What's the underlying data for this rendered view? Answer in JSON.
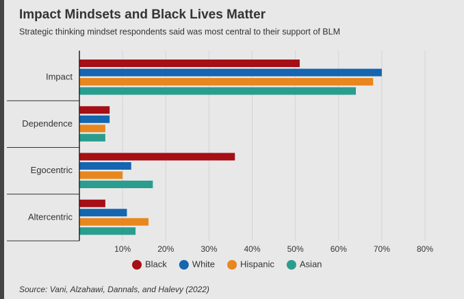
{
  "chart_data": {
    "type": "hbar",
    "title": "Impact Mindsets and Black Lives Matter",
    "subtitle": "Strategic thinking mindset respondents said was most central to their support of BLM",
    "source": "Source: Vani, Alzahawi, Dannals, and Halevy (2022)",
    "categories": [
      "Impact",
      "Dependence",
      "Egocentric",
      "Altercentric"
    ],
    "series": [
      {
        "name": "Black",
        "color": "#a50f15",
        "values": [
          51,
          7,
          36,
          6
        ]
      },
      {
        "name": "White",
        "color": "#1565b0",
        "values": [
          70,
          7,
          12,
          11
        ]
      },
      {
        "name": "Hispanic",
        "color": "#e8871e",
        "values": [
          68,
          6,
          10,
          16
        ]
      },
      {
        "name": "Asian",
        "color": "#2a9d8f",
        "values": [
          64,
          6,
          17,
          13
        ]
      }
    ],
    "xlim": [
      0,
      80
    ],
    "xticks": [
      {
        "value": 10,
        "label": "10%"
      },
      {
        "value": 20,
        "label": "20%"
      },
      {
        "value": 30,
        "label": "30%"
      },
      {
        "value": 40,
        "label": "40%"
      },
      {
        "value": 50,
        "label": "50%"
      },
      {
        "value": 60,
        "label": "60%"
      },
      {
        "value": 70,
        "label": "70%"
      },
      {
        "value": 80,
        "label": "80%"
      }
    ],
    "grid": true
  }
}
